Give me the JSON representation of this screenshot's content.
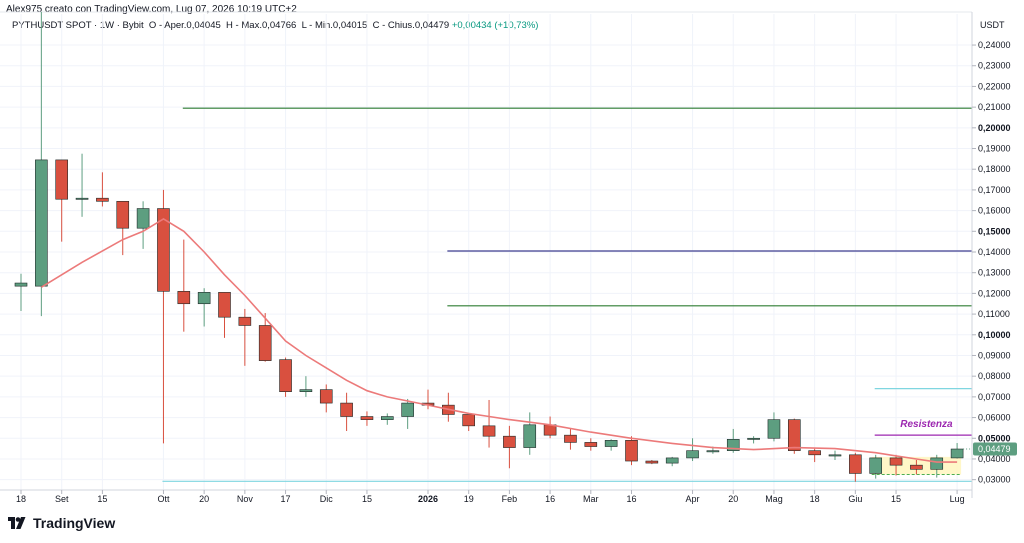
{
  "header": {
    "credit": "Alex975 creato con TradingView.com, Lug 07, 2026 10:19 UTC+2",
    "symbol": "PYTHUSDT SPOT",
    "interval": "1W",
    "exchange": "Bybit",
    "open_label": "O",
    "open_text": "Aper.0,04045",
    "high_label": "H",
    "high_text": "Max.0,04766",
    "low_label": "L",
    "low_text": "Min.0,04015",
    "close_label": "C",
    "close_text": "Chius.0,04479",
    "change_text": "+0,00434 (+10,73%)"
  },
  "axis": {
    "unit": "USDT",
    "current_price_label": "0,04479"
  },
  "brand": {
    "name": "TradingView",
    "icon": "tradingview-logo-icon"
  },
  "colors": {
    "up": "#5d9e80",
    "down": "#d9503f",
    "ma": "#ec7a7a",
    "resistance": "#9c27b0",
    "hline_green": "#2e7d32",
    "hline_navy": "#3f3f8f",
    "hline_cyan": "#7fd6e0"
  },
  "chart_data": {
    "type": "candlestick",
    "ylim": [
      0.025,
      0.255
    ],
    "y_ticks": [
      "0,03000",
      "0,04000",
      "0,05000",
      "0,06000",
      "0,07000",
      "0,08000",
      "0,09000",
      "0,10000",
      "0,11000",
      "0,12000",
      "0,13000",
      "0,14000",
      "0,15000",
      "0,16000",
      "0,17000",
      "0,18000",
      "0,19000",
      "0,20000",
      "0,21000",
      "0,22000",
      "0,23000",
      "0,24000"
    ],
    "y_tick_values": [
      0.03,
      0.04,
      0.05,
      0.06,
      0.07,
      0.08,
      0.09,
      0.1,
      0.11,
      0.12,
      0.13,
      0.14,
      0.15,
      0.16,
      0.17,
      0.18,
      0.19,
      0.2,
      0.21,
      0.22,
      0.23,
      0.24
    ],
    "y_tick_bold": [
      0.05,
      0.1,
      0.15,
      0.2
    ],
    "x_ticks": [
      {
        "label": "18",
        "i": 0
      },
      {
        "label": "Set",
        "i": 2
      },
      {
        "label": "15",
        "i": 4
      },
      {
        "label": "Ott",
        "i": 7
      },
      {
        "label": "20",
        "i": 9
      },
      {
        "label": "Nov",
        "i": 11
      },
      {
        "label": "17",
        "i": 13
      },
      {
        "label": "Dic",
        "i": 15
      },
      {
        "label": "15",
        "i": 17
      },
      {
        "label": "2026",
        "i": 20,
        "bold": true
      },
      {
        "label": "19",
        "i": 22
      },
      {
        "label": "Feb",
        "i": 24
      },
      {
        "label": "16",
        "i": 26
      },
      {
        "label": "Mar",
        "i": 28
      },
      {
        "label": "16",
        "i": 30
      },
      {
        "label": "Apr",
        "i": 33
      },
      {
        "label": "20",
        "i": 35
      },
      {
        "label": "Mag",
        "i": 37
      },
      {
        "label": "18",
        "i": 39
      },
      {
        "label": "Giu",
        "i": 41
      },
      {
        "label": "15",
        "i": 43
      },
      {
        "label": "Lug",
        "i": 46
      }
    ],
    "candles": [
      {
        "o": 0.1235,
        "h": 0.1295,
        "l": 0.1115,
        "c": 0.125
      },
      {
        "o": 0.1235,
        "h": 0.256,
        "l": 0.109,
        "c": 0.1845
      },
      {
        "o": 0.1845,
        "h": 0.1845,
        "l": 0.145,
        "c": 0.1655
      },
      {
        "o": 0.1655,
        "h": 0.1875,
        "l": 0.157,
        "c": 0.166
      },
      {
        "o": 0.166,
        "h": 0.1785,
        "l": 0.162,
        "c": 0.1645
      },
      {
        "o": 0.1645,
        "h": 0.1645,
        "l": 0.1385,
        "c": 0.1515
      },
      {
        "o": 0.1515,
        "h": 0.1645,
        "l": 0.1415,
        "c": 0.161
      },
      {
        "o": 0.161,
        "h": 0.17,
        "l": 0.0475,
        "c": 0.121
      },
      {
        "o": 0.121,
        "h": 0.146,
        "l": 0.1015,
        "c": 0.115
      },
      {
        "o": 0.115,
        "h": 0.1225,
        "l": 0.104,
        "c": 0.1205
      },
      {
        "o": 0.1205,
        "h": 0.1205,
        "l": 0.0985,
        "c": 0.1085
      },
      {
        "o": 0.1085,
        "h": 0.1125,
        "l": 0.085,
        "c": 0.1045
      },
      {
        "o": 0.1045,
        "h": 0.1105,
        "l": 0.087,
        "c": 0.0875
      },
      {
        "o": 0.088,
        "h": 0.089,
        "l": 0.07,
        "c": 0.0725
      },
      {
        "o": 0.0725,
        "h": 0.08,
        "l": 0.07,
        "c": 0.0735
      },
      {
        "o": 0.0735,
        "h": 0.076,
        "l": 0.0625,
        "c": 0.067
      },
      {
        "o": 0.067,
        "h": 0.072,
        "l": 0.0535,
        "c": 0.0605
      },
      {
        "o": 0.0605,
        "h": 0.063,
        "l": 0.056,
        "c": 0.059
      },
      {
        "o": 0.059,
        "h": 0.062,
        "l": 0.0565,
        "c": 0.0605
      },
      {
        "o": 0.0605,
        "h": 0.069,
        "l": 0.0545,
        "c": 0.067
      },
      {
        "o": 0.067,
        "h": 0.0735,
        "l": 0.064,
        "c": 0.066
      },
      {
        "o": 0.066,
        "h": 0.072,
        "l": 0.058,
        "c": 0.0615
      },
      {
        "o": 0.0615,
        "h": 0.0615,
        "l": 0.0535,
        "c": 0.056
      },
      {
        "o": 0.056,
        "h": 0.0685,
        "l": 0.0455,
        "c": 0.051
      },
      {
        "o": 0.051,
        "h": 0.056,
        "l": 0.0355,
        "c": 0.0455
      },
      {
        "o": 0.0455,
        "h": 0.0625,
        "l": 0.042,
        "c": 0.0565
      },
      {
        "o": 0.0565,
        "h": 0.0605,
        "l": 0.05,
        "c": 0.0515
      },
      {
        "o": 0.0515,
        "h": 0.0545,
        "l": 0.0445,
        "c": 0.048
      },
      {
        "o": 0.048,
        "h": 0.05,
        "l": 0.044,
        "c": 0.046
      },
      {
        "o": 0.046,
        "h": 0.0495,
        "l": 0.044,
        "c": 0.049
      },
      {
        "o": 0.049,
        "h": 0.051,
        "l": 0.037,
        "c": 0.039
      },
      {
        "o": 0.039,
        "h": 0.0395,
        "l": 0.0375,
        "c": 0.038
      },
      {
        "o": 0.038,
        "h": 0.041,
        "l": 0.0365,
        "c": 0.0405
      },
      {
        "o": 0.0405,
        "h": 0.05,
        "l": 0.039,
        "c": 0.044
      },
      {
        "o": 0.044,
        "h": 0.046,
        "l": 0.0425,
        "c": 0.044
      },
      {
        "o": 0.044,
        "h": 0.0545,
        "l": 0.043,
        "c": 0.0495
      },
      {
        "o": 0.0495,
        "h": 0.051,
        "l": 0.0475,
        "c": 0.05
      },
      {
        "o": 0.05,
        "h": 0.0625,
        "l": 0.0485,
        "c": 0.059
      },
      {
        "o": 0.059,
        "h": 0.0595,
        "l": 0.0425,
        "c": 0.044
      },
      {
        "o": 0.044,
        "h": 0.045,
        "l": 0.0385,
        "c": 0.042
      },
      {
        "o": 0.042,
        "h": 0.044,
        "l": 0.0395,
        "c": 0.042
      },
      {
        "o": 0.042,
        "h": 0.043,
        "l": 0.029,
        "c": 0.033
      },
      {
        "o": 0.033,
        "h": 0.042,
        "l": 0.0305,
        "c": 0.0405
      },
      {
        "o": 0.0405,
        "h": 0.042,
        "l": 0.032,
        "c": 0.037
      },
      {
        "o": 0.037,
        "h": 0.0395,
        "l": 0.0325,
        "c": 0.035
      },
      {
        "o": 0.035,
        "h": 0.042,
        "l": 0.031,
        "c": 0.0405
      },
      {
        "o": 0.0405,
        "h": 0.0477,
        "l": 0.0402,
        "c": 0.0448
      }
    ],
    "moving_average": [
      {
        "i": 1,
        "v": 0.123
      },
      {
        "i": 3,
        "v": 0.135
      },
      {
        "i": 5,
        "v": 0.146
      },
      {
        "i": 6,
        "v": 0.15
      },
      {
        "i": 7,
        "v": 0.156
      },
      {
        "i": 8,
        "v": 0.15
      },
      {
        "i": 9,
        "v": 0.14
      },
      {
        "i": 10,
        "v": 0.129
      },
      {
        "i": 11,
        "v": 0.119
      },
      {
        "i": 12,
        "v": 0.108
      },
      {
        "i": 13,
        "v": 0.097
      },
      {
        "i": 14,
        "v": 0.09
      },
      {
        "i": 15,
        "v": 0.084
      },
      {
        "i": 16,
        "v": 0.078
      },
      {
        "i": 17,
        "v": 0.073
      },
      {
        "i": 18,
        "v": 0.07
      },
      {
        "i": 19,
        "v": 0.068
      },
      {
        "i": 20,
        "v": 0.066
      },
      {
        "i": 21,
        "v": 0.064
      },
      {
        "i": 22,
        "v": 0.062
      },
      {
        "i": 23,
        "v": 0.0605
      },
      {
        "i": 24,
        "v": 0.059
      },
      {
        "i": 26,
        "v": 0.0565
      },
      {
        "i": 28,
        "v": 0.053
      },
      {
        "i": 30,
        "v": 0.05
      },
      {
        "i": 32,
        "v": 0.0475
      },
      {
        "i": 34,
        "v": 0.0455
      },
      {
        "i": 36,
        "v": 0.0445
      },
      {
        "i": 38,
        "v": 0.0455
      },
      {
        "i": 40,
        "v": 0.045
      },
      {
        "i": 42,
        "v": 0.043
      },
      {
        "i": 44,
        "v": 0.04
      },
      {
        "i": 45,
        "v": 0.0385
      },
      {
        "i": 46,
        "v": 0.0385
      }
    ],
    "horizontal_lines": [
      {
        "name": "green-level-021",
        "value": 0.2095,
        "x_from": 8,
        "color": "#2e7d32"
      },
      {
        "name": "navy-level-014",
        "value": 0.1405,
        "x_from": 21,
        "color": "#3f3f8f"
      },
      {
        "name": "green-level-0114",
        "value": 0.114,
        "x_from": 21,
        "color": "#2e7d32"
      },
      {
        "name": "cyan-level-0074",
        "value": 0.074,
        "x_from": 42,
        "color": "#7fd6e0"
      },
      {
        "name": "resistance-level",
        "value": 0.0515,
        "x_from": 42,
        "color": "#9c27b0"
      },
      {
        "name": "cyan-level-029",
        "value": 0.0292,
        "x_from": 7,
        "color": "#7fd6e0"
      }
    ],
    "annotations": [
      {
        "text": "Resistenza",
        "value": 0.0515
      }
    ],
    "range_box": {
      "i_from": 42,
      "i_to": 46,
      "top": 0.041,
      "bottom": 0.0325
    }
  }
}
